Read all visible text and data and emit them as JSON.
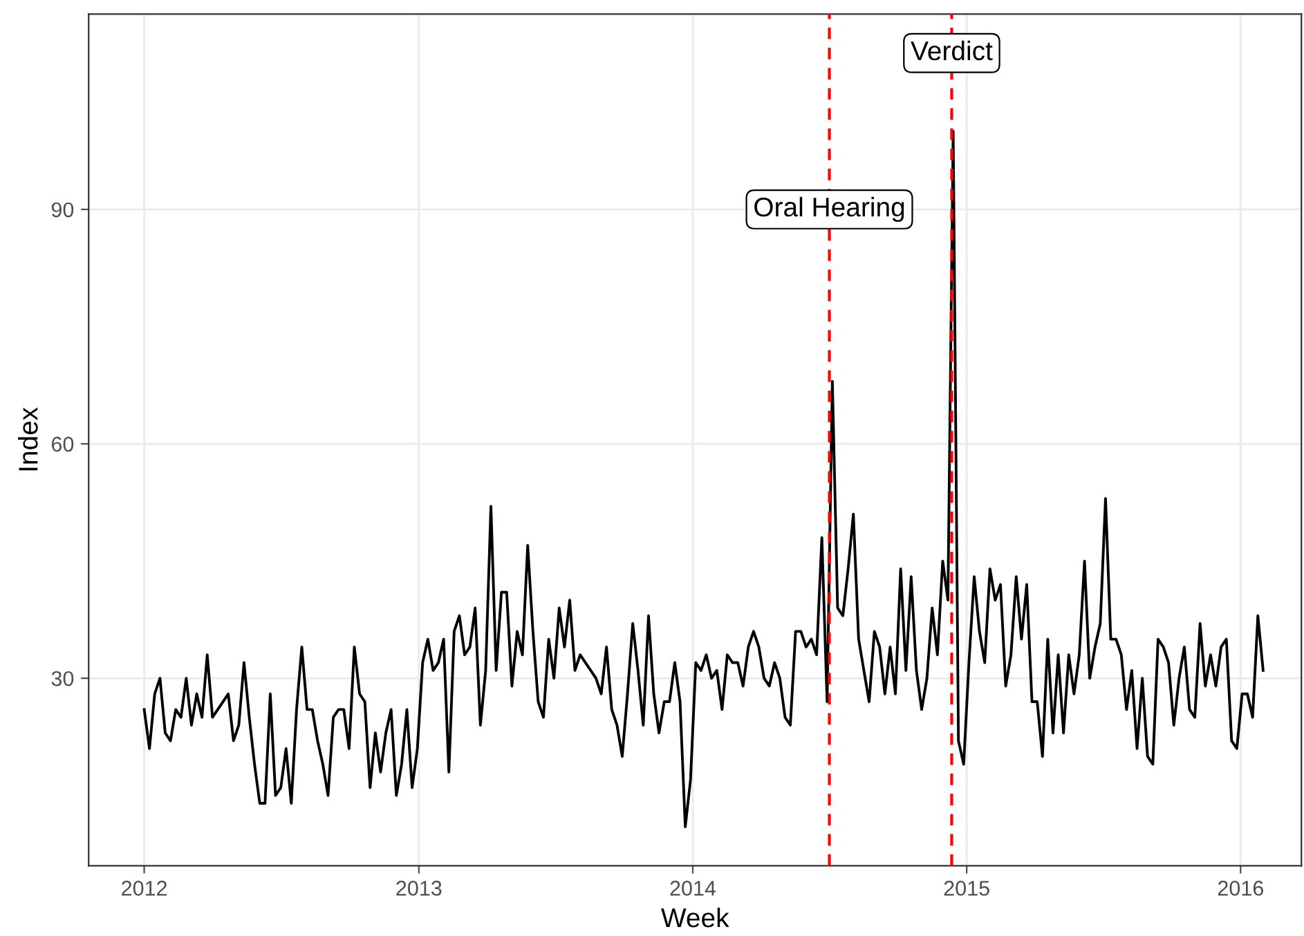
{
  "chart_data": {
    "type": "line",
    "xlabel": "Week",
    "ylabel": "Index",
    "x": [
      "2012-01-01",
      "2012-01-08",
      "2012-01-15",
      "2012-01-22",
      "2012-01-29",
      "2012-02-05",
      "2012-02-12",
      "2012-02-19",
      "2012-02-26",
      "2012-03-04",
      "2012-03-11",
      "2012-03-18",
      "2012-03-25",
      "2012-04-01",
      "2012-04-08",
      "2012-04-15",
      "2012-04-22",
      "2012-04-29",
      "2012-05-06",
      "2012-05-13",
      "2012-05-20",
      "2012-05-27",
      "2012-06-03",
      "2012-06-10",
      "2012-06-17",
      "2012-06-24",
      "2012-07-01",
      "2012-07-08",
      "2012-07-15",
      "2012-07-22",
      "2012-07-29",
      "2012-08-05",
      "2012-08-12",
      "2012-08-19",
      "2012-08-26",
      "2012-09-02",
      "2012-09-09",
      "2012-09-16",
      "2012-09-23",
      "2012-09-30",
      "2012-10-07",
      "2012-10-14",
      "2012-10-21",
      "2012-10-28",
      "2012-11-04",
      "2012-11-11",
      "2012-11-18",
      "2012-11-25",
      "2012-12-02",
      "2012-12-09",
      "2012-12-16",
      "2012-12-23",
      "2012-12-30",
      "2013-01-06",
      "2013-01-13",
      "2013-01-20",
      "2013-01-27",
      "2013-02-03",
      "2013-02-10",
      "2013-02-17",
      "2013-02-24",
      "2013-03-03",
      "2013-03-10",
      "2013-03-17",
      "2013-03-24",
      "2013-03-31",
      "2013-04-07",
      "2013-04-14",
      "2013-04-21",
      "2013-04-28",
      "2013-05-05",
      "2013-05-12",
      "2013-05-19",
      "2013-05-26",
      "2013-06-02",
      "2013-06-09",
      "2013-06-16",
      "2013-06-23",
      "2013-06-30",
      "2013-07-07",
      "2013-07-14",
      "2013-07-21",
      "2013-07-28",
      "2013-08-04",
      "2013-08-11",
      "2013-08-18",
      "2013-08-25",
      "2013-09-01",
      "2013-09-08",
      "2013-09-15",
      "2013-09-22",
      "2013-09-29",
      "2013-10-06",
      "2013-10-13",
      "2013-10-20",
      "2013-10-27",
      "2013-11-03",
      "2013-11-10",
      "2013-11-17",
      "2013-11-24",
      "2013-12-01",
      "2013-12-08",
      "2013-12-15",
      "2013-12-22",
      "2013-12-29",
      "2014-01-05",
      "2014-01-12",
      "2014-01-19",
      "2014-01-26",
      "2014-02-02",
      "2014-02-09",
      "2014-02-16",
      "2014-02-23",
      "2014-03-02",
      "2014-03-09",
      "2014-03-16",
      "2014-03-23",
      "2014-03-30",
      "2014-04-06",
      "2014-04-13",
      "2014-04-20",
      "2014-04-27",
      "2014-05-04",
      "2014-05-11",
      "2014-05-18",
      "2014-05-25",
      "2014-06-01",
      "2014-06-08",
      "2014-06-15",
      "2014-06-22",
      "2014-06-29",
      "2014-07-06",
      "2014-07-13",
      "2014-07-20",
      "2014-07-27",
      "2014-08-03",
      "2014-08-10",
      "2014-08-17",
      "2014-08-24",
      "2014-08-31",
      "2014-09-07",
      "2014-09-14",
      "2014-09-21",
      "2014-09-28",
      "2014-10-05",
      "2014-10-12",
      "2014-10-19",
      "2014-10-26",
      "2014-11-02",
      "2014-11-09",
      "2014-11-16",
      "2014-11-23",
      "2014-11-30",
      "2014-12-07",
      "2014-12-14",
      "2014-12-21",
      "2014-12-28",
      "2015-01-04",
      "2015-01-11",
      "2015-01-18",
      "2015-01-25",
      "2015-02-01",
      "2015-02-08",
      "2015-02-15",
      "2015-02-22",
      "2015-03-01",
      "2015-03-08",
      "2015-03-15",
      "2015-03-22",
      "2015-03-29",
      "2015-04-05",
      "2015-04-12",
      "2015-04-19",
      "2015-04-26",
      "2015-05-03",
      "2015-05-10",
      "2015-05-17",
      "2015-05-24",
      "2015-05-31",
      "2015-06-07",
      "2015-06-14",
      "2015-06-21",
      "2015-06-28",
      "2015-07-05",
      "2015-07-12",
      "2015-07-19",
      "2015-07-26",
      "2015-08-02",
      "2015-08-09",
      "2015-08-16",
      "2015-08-23",
      "2015-08-30",
      "2015-09-06",
      "2015-09-13",
      "2015-09-20",
      "2015-09-27",
      "2015-10-04",
      "2015-10-11",
      "2015-10-18",
      "2015-10-25",
      "2015-11-01",
      "2015-11-08",
      "2015-11-15",
      "2015-11-22",
      "2015-11-29",
      "2015-12-06",
      "2015-12-13",
      "2015-12-20",
      "2015-12-27",
      "2016-01-03",
      "2016-01-10",
      "2016-01-17",
      "2016-01-24",
      "2016-01-31"
    ],
    "series": [
      {
        "color": "#000000",
        "values": [
          26,
          21,
          28,
          30,
          23,
          22,
          26,
          25,
          30,
          24,
          28,
          25,
          33,
          25,
          26,
          27,
          28,
          22,
          24,
          32,
          25,
          19,
          14,
          14,
          28,
          15,
          16,
          21,
          14,
          26,
          34,
          26,
          26,
          22,
          19,
          15,
          25,
          26,
          26,
          21,
          34,
          28,
          27,
          16,
          23,
          18,
          23,
          26,
          15,
          19,
          26,
          16,
          21,
          32,
          35,
          31,
          32,
          35,
          18,
          36,
          38,
          33,
          34,
          39,
          24,
          31,
          52,
          31,
          41,
          41,
          29,
          36,
          33,
          47,
          36,
          27,
          25,
          35,
          30,
          39,
          34,
          40,
          31,
          33,
          32,
          31,
          30,
          28,
          34,
          26,
          24,
          20,
          28,
          37,
          31,
          24,
          38,
          28,
          23,
          27,
          27,
          32,
          27,
          11,
          17,
          32,
          31,
          33,
          30,
          31,
          26,
          33,
          32,
          32,
          29,
          34,
          36,
          34,
          30,
          29,
          32,
          30,
          25,
          24,
          36,
          36,
          34,
          35,
          33,
          48,
          27,
          68,
          39,
          38,
          44,
          51,
          35,
          31,
          27,
          36,
          34,
          28,
          34,
          28,
          44,
          31,
          43,
          31,
          26,
          30,
          39,
          33,
          45,
          40,
          100,
          22,
          19,
          32,
          43,
          36,
          32,
          44,
          40,
          42,
          29,
          33,
          43,
          35,
          42,
          27,
          27,
          20,
          35,
          23,
          33,
          23,
          33,
          28,
          33,
          45,
          30,
          34,
          37,
          53,
          35,
          35,
          33,
          26,
          31,
          21,
          30,
          20,
          19,
          35,
          34,
          32,
          24,
          30,
          34,
          26,
          25,
          37,
          29,
          33,
          29,
          34,
          35,
          22,
          21,
          28,
          28,
          25,
          38,
          31
        ]
      }
    ],
    "ref_lines": [
      {
        "axis": "x",
        "value": "2014-07-02",
        "color": "#ff0000",
        "line_style": "dashed"
      },
      {
        "axis": "x",
        "value": "2014-12-12",
        "color": "#ff0000",
        "line_style": "dashed"
      }
    ],
    "annotations": [
      {
        "text": "Oral Hearing",
        "x": "2014-07-02",
        "y": 90
      },
      {
        "text": "Verdict",
        "x": "2014-12-12",
        "y": 110
      }
    ],
    "xlim": [
      "2011-10-19",
      "2016-03-22"
    ],
    "ylim": [
      6,
      115
    ],
    "xticks": [
      {
        "value": "2012-01-01",
        "label": "2012"
      },
      {
        "value": "2013-01-01",
        "label": "2013"
      },
      {
        "value": "2014-01-01",
        "label": "2014"
      },
      {
        "value": "2015-01-01",
        "label": "2015"
      },
      {
        "value": "2016-01-01",
        "label": "2016"
      }
    ],
    "yticks": [
      30,
      60,
      90
    ],
    "grid": true,
    "line_style": "solid",
    "marker": "none"
  }
}
